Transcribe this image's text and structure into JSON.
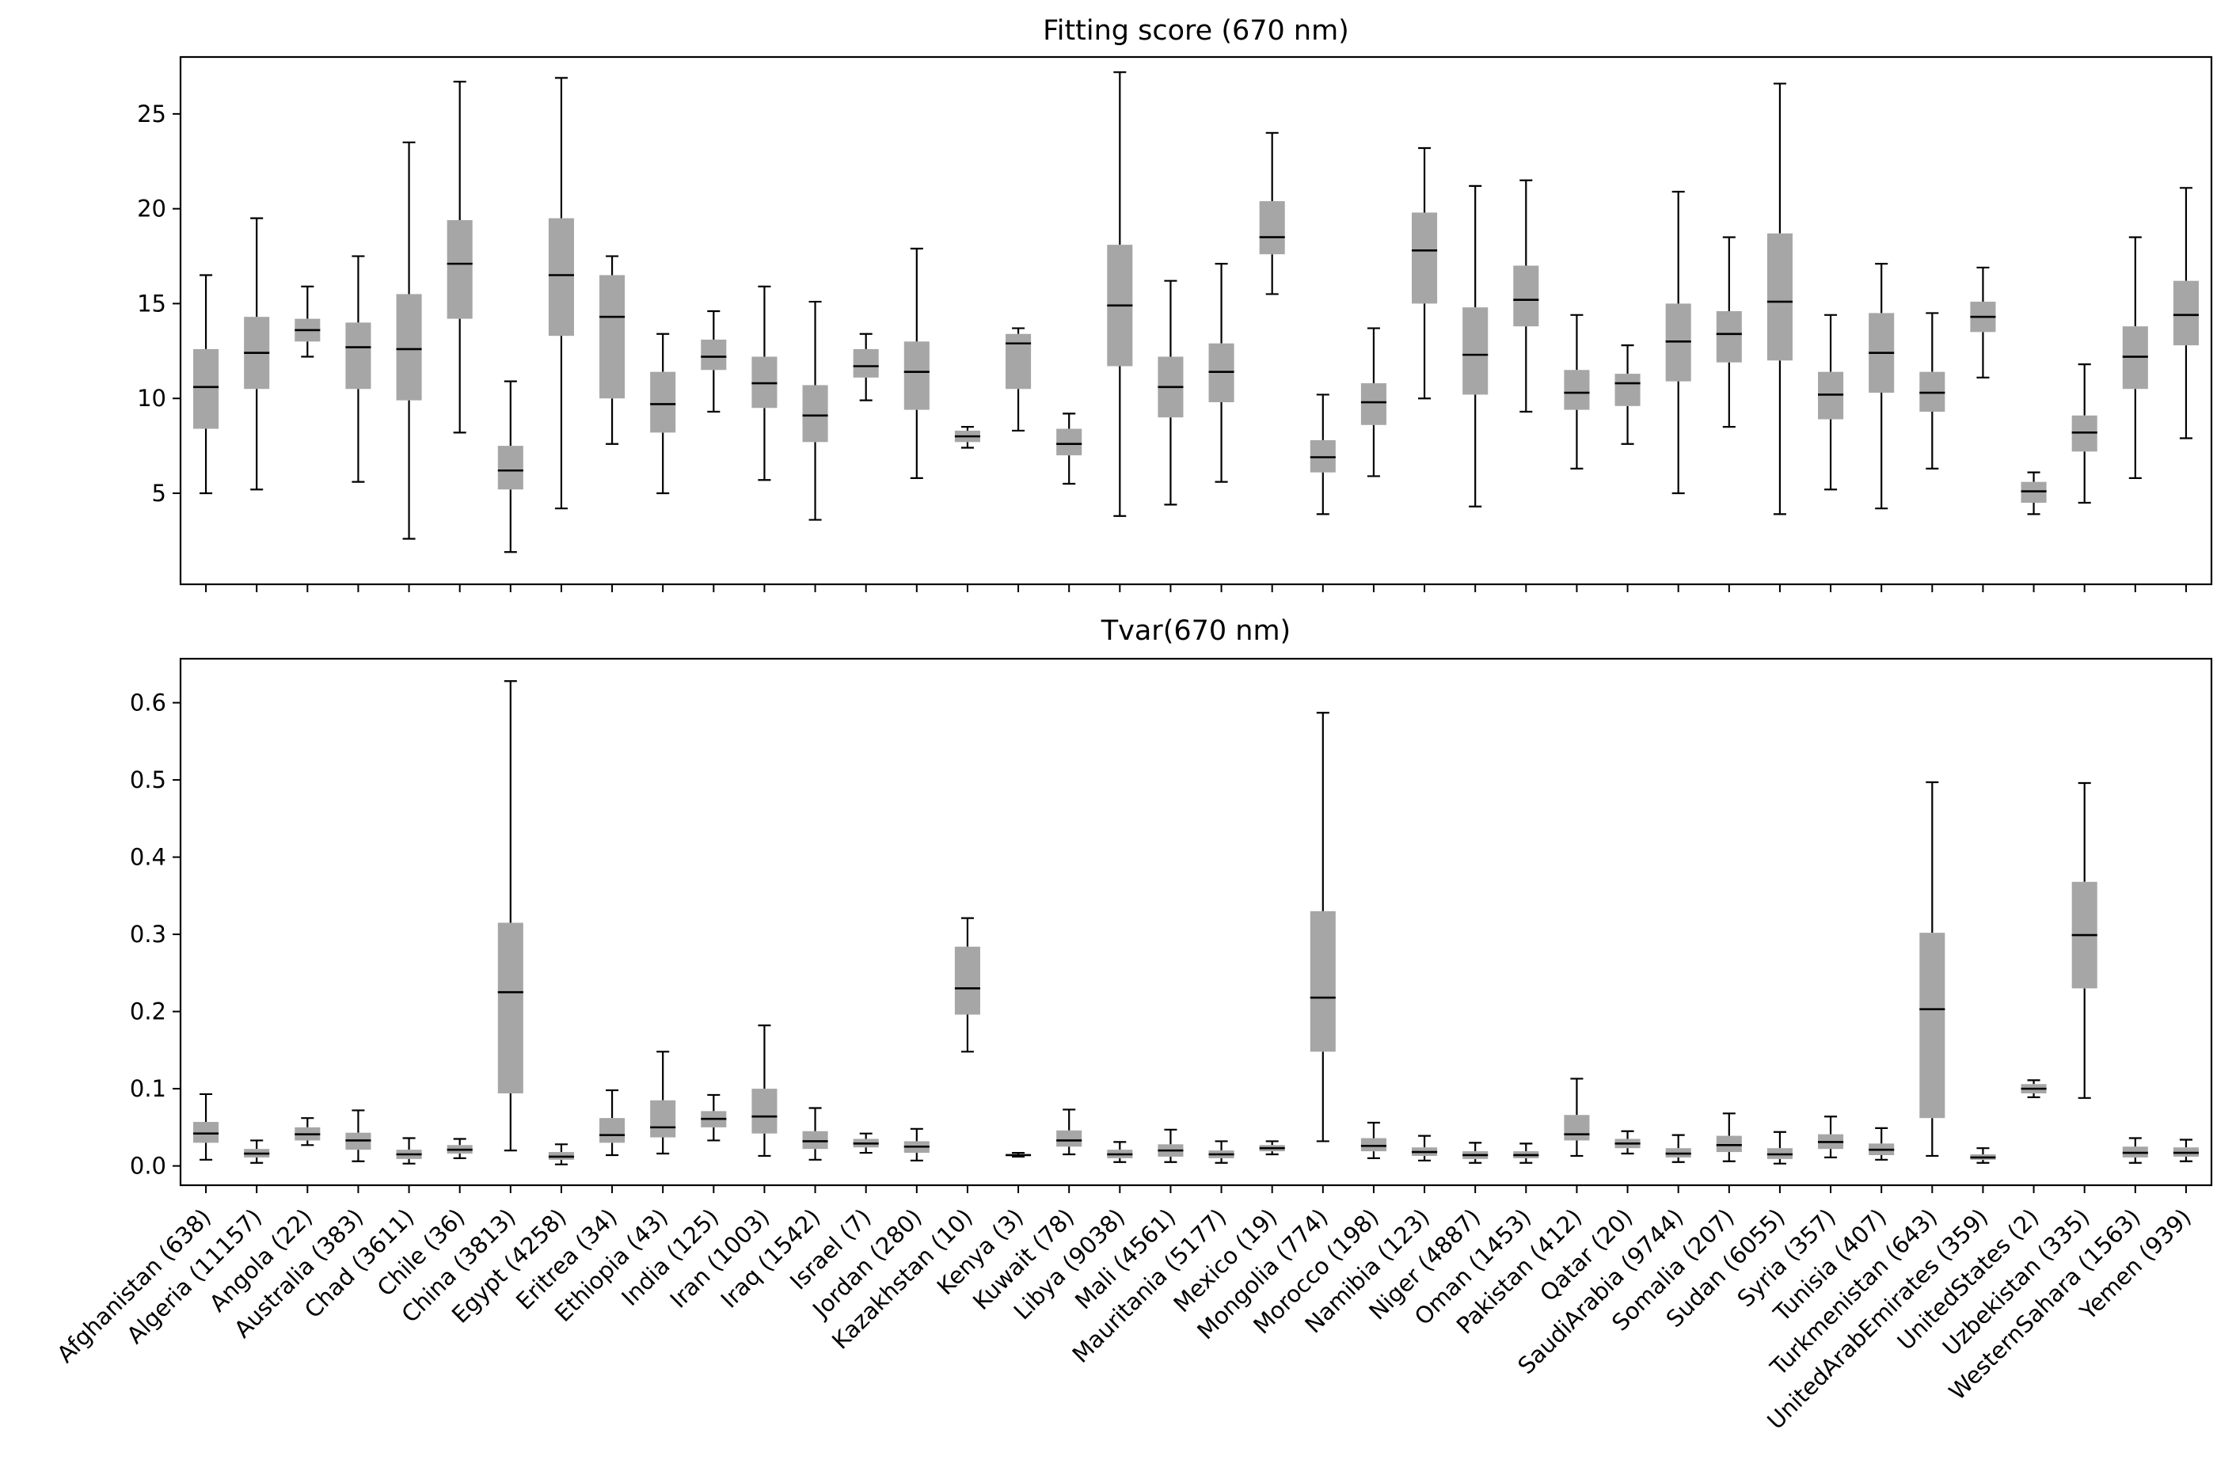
{
  "chart_data": [
    {
      "type": "box",
      "title": "Fitting score (670 nm)",
      "ylim": [
        0.2,
        28.0
      ],
      "yticks": [
        5,
        10,
        15,
        20,
        25
      ],
      "box_color": "#a6a6a6",
      "grid": false,
      "categories": [
        "Afghanistan (638)",
        "Algeria (11157)",
        "Angola (22)",
        "Australia (383)",
        "Chad (3611)",
        "Chile (36)",
        "China (3813)",
        "Egypt (4258)",
        "Eritrea (34)",
        "Ethiopia (43)",
        "India (125)",
        "Iran (1003)",
        "Iraq (1542)",
        "Israel (7)",
        "Jordan (280)",
        "Kazakhstan (10)",
        "Kenya (3)",
        "Kuwait (78)",
        "Libya (9038)",
        "Mali (4561)",
        "Mauritania (5177)",
        "Mexico (19)",
        "Mongolia (774)",
        "Morocco (198)",
        "Namibia (123)",
        "Niger (4887)",
        "Oman (1453)",
        "Pakistan (412)",
        "Qatar (20)",
        "SaudiArabia (9744)",
        "Somalia (207)",
        "Sudan (6055)",
        "Syria (357)",
        "Tunisia (407)",
        "Turkmenistan (643)",
        "UnitedArabEmirates (359)",
        "UnitedStates (2)",
        "Uzbekistan (335)",
        "WesternSahara (1563)",
        "Yemen (939)"
      ],
      "boxes": [
        {
          "whislo": 5.0,
          "q1": 8.4,
          "med": 10.6,
          "q3": 12.6,
          "whishi": 16.5
        },
        {
          "whislo": 5.2,
          "q1": 10.5,
          "med": 12.4,
          "q3": 14.3,
          "whishi": 19.5
        },
        {
          "whislo": 12.2,
          "q1": 13.0,
          "med": 13.6,
          "q3": 14.2,
          "whishi": 15.9
        },
        {
          "whislo": 5.6,
          "q1": 10.5,
          "med": 12.7,
          "q3": 14.0,
          "whishi": 17.5
        },
        {
          "whislo": 2.6,
          "q1": 9.9,
          "med": 12.6,
          "q3": 15.5,
          "whishi": 23.5
        },
        {
          "whislo": 8.2,
          "q1": 14.2,
          "med": 17.1,
          "q3": 19.4,
          "whishi": 26.7
        },
        {
          "whislo": 1.9,
          "q1": 5.2,
          "med": 6.2,
          "q3": 7.5,
          "whishi": 10.9
        },
        {
          "whislo": 4.2,
          "q1": 13.3,
          "med": 16.5,
          "q3": 19.5,
          "whishi": 26.9
        },
        {
          "whislo": 7.6,
          "q1": 10.0,
          "med": 14.3,
          "q3": 16.5,
          "whishi": 17.5
        },
        {
          "whislo": 5.0,
          "q1": 8.2,
          "med": 9.7,
          "q3": 11.4,
          "whishi": 13.4
        },
        {
          "whislo": 9.3,
          "q1": 11.5,
          "med": 12.2,
          "q3": 13.1,
          "whishi": 14.6
        },
        {
          "whislo": 5.7,
          "q1": 9.5,
          "med": 10.8,
          "q3": 12.2,
          "whishi": 15.9
        },
        {
          "whislo": 3.6,
          "q1": 7.7,
          "med": 9.1,
          "q3": 10.7,
          "whishi": 15.1
        },
        {
          "whislo": 9.9,
          "q1": 11.1,
          "med": 11.7,
          "q3": 12.6,
          "whishi": 13.4
        },
        {
          "whislo": 5.8,
          "q1": 9.4,
          "med": 11.4,
          "q3": 13.0,
          "whishi": 17.9
        },
        {
          "whislo": 7.4,
          "q1": 7.7,
          "med": 8.0,
          "q3": 8.3,
          "whishi": 8.5
        },
        {
          "whislo": 8.3,
          "q1": 10.5,
          "med": 12.9,
          "q3": 13.4,
          "whishi": 13.7
        },
        {
          "whislo": 5.5,
          "q1": 7.0,
          "med": 7.6,
          "q3": 8.4,
          "whishi": 9.2
        },
        {
          "whislo": 3.8,
          "q1": 11.7,
          "med": 14.9,
          "q3": 18.1,
          "whishi": 27.2
        },
        {
          "whislo": 4.4,
          "q1": 9.0,
          "med": 10.6,
          "q3": 12.2,
          "whishi": 16.2
        },
        {
          "whislo": 5.6,
          "q1": 9.8,
          "med": 11.4,
          "q3": 12.9,
          "whishi": 17.1
        },
        {
          "whislo": 15.5,
          "q1": 17.6,
          "med": 18.5,
          "q3": 20.4,
          "whishi": 24.0
        },
        {
          "whislo": 3.9,
          "q1": 6.1,
          "med": 6.9,
          "q3": 7.8,
          "whishi": 10.2
        },
        {
          "whislo": 5.9,
          "q1": 8.6,
          "med": 9.8,
          "q3": 10.8,
          "whishi": 13.7
        },
        {
          "whislo": 10.0,
          "q1": 15.0,
          "med": 17.8,
          "q3": 19.8,
          "whishi": 23.2
        },
        {
          "whislo": 4.3,
          "q1": 10.2,
          "med": 12.3,
          "q3": 14.8,
          "whishi": 21.2
        },
        {
          "whislo": 9.3,
          "q1": 13.8,
          "med": 15.2,
          "q3": 17.0,
          "whishi": 21.5
        },
        {
          "whislo": 6.3,
          "q1": 9.4,
          "med": 10.3,
          "q3": 11.5,
          "whishi": 14.4
        },
        {
          "whislo": 7.6,
          "q1": 9.6,
          "med": 10.8,
          "q3": 11.3,
          "whishi": 12.8
        },
        {
          "whislo": 5.0,
          "q1": 10.9,
          "med": 13.0,
          "q3": 15.0,
          "whishi": 20.9
        },
        {
          "whislo": 8.5,
          "q1": 11.9,
          "med": 13.4,
          "q3": 14.6,
          "whishi": 18.5
        },
        {
          "whislo": 3.9,
          "q1": 12.0,
          "med": 15.1,
          "q3": 18.7,
          "whishi": 26.6
        },
        {
          "whislo": 5.2,
          "q1": 8.9,
          "med": 10.2,
          "q3": 11.4,
          "whishi": 14.4
        },
        {
          "whislo": 4.2,
          "q1": 10.3,
          "med": 12.4,
          "q3": 14.5,
          "whishi": 17.1
        },
        {
          "whislo": 6.3,
          "q1": 9.3,
          "med": 10.3,
          "q3": 11.4,
          "whishi": 14.5
        },
        {
          "whislo": 11.1,
          "q1": 13.5,
          "med": 14.3,
          "q3": 15.1,
          "whishi": 16.9
        },
        {
          "whislo": 3.9,
          "q1": 4.5,
          "med": 5.1,
          "q3": 5.6,
          "whishi": 6.1
        },
        {
          "whislo": 4.5,
          "q1": 7.2,
          "med": 8.2,
          "q3": 9.1,
          "whishi": 11.8
        },
        {
          "whislo": 5.8,
          "q1": 10.5,
          "med": 12.2,
          "q3": 13.8,
          "whishi": 18.5
        },
        {
          "whislo": 7.9,
          "q1": 12.8,
          "med": 14.4,
          "q3": 16.2,
          "whishi": 21.1
        }
      ]
    },
    {
      "type": "box",
      "title": "Tvar(670 nm)",
      "ylim": [
        -0.025,
        0.657
      ],
      "yticks": [
        "0.0",
        "0.1",
        "0.2",
        "0.3",
        "0.4",
        "0.5",
        "0.6"
      ],
      "box_color": "#a6a6a6",
      "grid": false,
      "categories": [
        "Afghanistan (638)",
        "Algeria (11157)",
        "Angola (22)",
        "Australia (383)",
        "Chad (3611)",
        "Chile (36)",
        "China (3813)",
        "Egypt (4258)",
        "Eritrea (34)",
        "Ethiopia (43)",
        "India (125)",
        "Iran (1003)",
        "Iraq (1542)",
        "Israel (7)",
        "Jordan (280)",
        "Kazakhstan (10)",
        "Kenya (3)",
        "Kuwait (78)",
        "Libya (9038)",
        "Mali (4561)",
        "Mauritania (5177)",
        "Mexico (19)",
        "Mongolia (774)",
        "Morocco (198)",
        "Namibia (123)",
        "Niger (4887)",
        "Oman (1453)",
        "Pakistan (412)",
        "Qatar (20)",
        "SaudiArabia (9744)",
        "Somalia (207)",
        "Sudan (6055)",
        "Syria (357)",
        "Tunisia (407)",
        "Turkmenistan (643)",
        "UnitedArabEmirates (359)",
        "UnitedStates (2)",
        "Uzbekistan (335)",
        "WesternSahara (1563)",
        "Yemen (939)"
      ],
      "boxes": [
        {
          "whislo": 0.008,
          "q1": 0.03,
          "med": 0.042,
          "q3": 0.057,
          "whishi": 0.093
        },
        {
          "whislo": 0.004,
          "q1": 0.011,
          "med": 0.016,
          "q3": 0.022,
          "whishi": 0.033
        },
        {
          "whislo": 0.027,
          "q1": 0.033,
          "med": 0.041,
          "q3": 0.05,
          "whishi": 0.062
        },
        {
          "whislo": 0.006,
          "q1": 0.021,
          "med": 0.033,
          "q3": 0.043,
          "whishi": 0.072
        },
        {
          "whislo": 0.003,
          "q1": 0.009,
          "med": 0.015,
          "q3": 0.021,
          "whishi": 0.036
        },
        {
          "whislo": 0.01,
          "q1": 0.016,
          "med": 0.021,
          "q3": 0.027,
          "whishi": 0.035
        },
        {
          "whislo": 0.02,
          "q1": 0.094,
          "med": 0.225,
          "q3": 0.315,
          "whishi": 0.628
        },
        {
          "whislo": 0.002,
          "q1": 0.008,
          "med": 0.012,
          "q3": 0.018,
          "whishi": 0.028
        },
        {
          "whislo": 0.014,
          "q1": 0.03,
          "med": 0.04,
          "q3": 0.062,
          "whishi": 0.098
        },
        {
          "whislo": 0.016,
          "q1": 0.037,
          "med": 0.05,
          "q3": 0.085,
          "whishi": 0.148
        },
        {
          "whislo": 0.033,
          "q1": 0.05,
          "med": 0.061,
          "q3": 0.071,
          "whishi": 0.092
        },
        {
          "whislo": 0.013,
          "q1": 0.042,
          "med": 0.064,
          "q3": 0.1,
          "whishi": 0.182
        },
        {
          "whislo": 0.008,
          "q1": 0.022,
          "med": 0.032,
          "q3": 0.045,
          "whishi": 0.075
        },
        {
          "whislo": 0.017,
          "q1": 0.024,
          "med": 0.029,
          "q3": 0.035,
          "whishi": 0.042
        },
        {
          "whislo": 0.007,
          "q1": 0.017,
          "med": 0.025,
          "q3": 0.032,
          "whishi": 0.048
        },
        {
          "whislo": 0.148,
          "q1": 0.196,
          "med": 0.23,
          "q3": 0.284,
          "whishi": 0.321
        },
        {
          "whislo": 0.012,
          "q1": 0.013,
          "med": 0.014,
          "q3": 0.015,
          "whishi": 0.017
        },
        {
          "whislo": 0.015,
          "q1": 0.025,
          "med": 0.033,
          "q3": 0.046,
          "whishi": 0.073
        },
        {
          "whislo": 0.005,
          "q1": 0.01,
          "med": 0.015,
          "q3": 0.021,
          "whishi": 0.031
        },
        {
          "whislo": 0.005,
          "q1": 0.012,
          "med": 0.02,
          "q3": 0.028,
          "whishi": 0.047
        },
        {
          "whislo": 0.004,
          "q1": 0.01,
          "med": 0.015,
          "q3": 0.02,
          "whishi": 0.032
        },
        {
          "whislo": 0.015,
          "q1": 0.019,
          "med": 0.023,
          "q3": 0.027,
          "whishi": 0.032
        },
        {
          "whislo": 0.032,
          "q1": 0.148,
          "med": 0.218,
          "q3": 0.33,
          "whishi": 0.587
        },
        {
          "whislo": 0.01,
          "q1": 0.019,
          "med": 0.026,
          "q3": 0.036,
          "whishi": 0.056
        },
        {
          "whislo": 0.007,
          "q1": 0.013,
          "med": 0.018,
          "q3": 0.024,
          "whishi": 0.039
        },
        {
          "whislo": 0.004,
          "q1": 0.009,
          "med": 0.014,
          "q3": 0.019,
          "whishi": 0.03
        },
        {
          "whislo": 0.004,
          "q1": 0.01,
          "med": 0.014,
          "q3": 0.019,
          "whishi": 0.029
        },
        {
          "whislo": 0.013,
          "q1": 0.033,
          "med": 0.041,
          "q3": 0.066,
          "whishi": 0.113
        },
        {
          "whislo": 0.016,
          "q1": 0.023,
          "med": 0.029,
          "q3": 0.035,
          "whishi": 0.045
        },
        {
          "whislo": 0.005,
          "q1": 0.011,
          "med": 0.016,
          "q3": 0.023,
          "whishi": 0.04
        },
        {
          "whislo": 0.006,
          "q1": 0.018,
          "med": 0.027,
          "q3": 0.039,
          "whishi": 0.068
        },
        {
          "whislo": 0.003,
          "q1": 0.009,
          "med": 0.015,
          "q3": 0.023,
          "whishi": 0.044
        },
        {
          "whislo": 0.011,
          "q1": 0.022,
          "med": 0.031,
          "q3": 0.041,
          "whishi": 0.064
        },
        {
          "whislo": 0.008,
          "q1": 0.014,
          "med": 0.021,
          "q3": 0.029,
          "whishi": 0.049
        },
        {
          "whislo": 0.013,
          "q1": 0.062,
          "med": 0.203,
          "q3": 0.302,
          "whishi": 0.497
        },
        {
          "whislo": 0.004,
          "q1": 0.008,
          "med": 0.011,
          "q3": 0.015,
          "whishi": 0.023
        },
        {
          "whislo": 0.089,
          "q1": 0.094,
          "med": 0.1,
          "q3": 0.106,
          "whishi": 0.111
        },
        {
          "whislo": 0.088,
          "q1": 0.23,
          "med": 0.299,
          "q3": 0.368,
          "whishi": 0.496
        },
        {
          "whislo": 0.004,
          "q1": 0.011,
          "med": 0.017,
          "q3": 0.025,
          "whishi": 0.036
        },
        {
          "whislo": 0.006,
          "q1": 0.012,
          "med": 0.017,
          "q3": 0.024,
          "whishi": 0.034
        }
      ]
    }
  ]
}
